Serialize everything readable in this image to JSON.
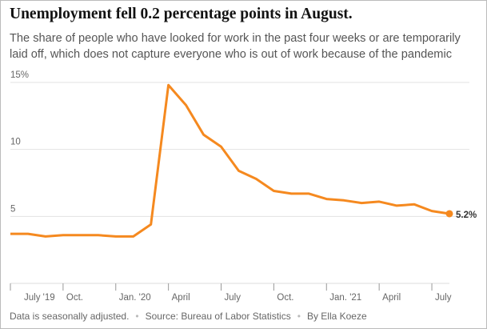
{
  "chart_data": {
    "type": "line",
    "title": "Unemployment fell 0.2 percentage points in August.",
    "subtitle": "The share of people who have looked for work in the past four weeks or are temporarily laid off, which does not capture everyone who is out of work because of the pandemic",
    "categories": [
      "July '19",
      null,
      null,
      "Oct.",
      null,
      null,
      "Jan. '20",
      null,
      null,
      "April",
      null,
      null,
      "July",
      null,
      null,
      "Oct.",
      null,
      null,
      "Jan. '21",
      null,
      null,
      "April",
      null,
      null,
      "July",
      null
    ],
    "values": [
      3.7,
      3.7,
      3.5,
      3.6,
      3.6,
      3.6,
      3.5,
      3.5,
      4.4,
      14.8,
      13.3,
      11.1,
      10.2,
      8.4,
      7.8,
      6.9,
      6.7,
      6.7,
      6.3,
      6.2,
      6.0,
      6.1,
      5.8,
      5.9,
      5.4,
      5.2
    ],
    "value_labels": [
      null,
      null,
      null,
      null,
      null,
      null,
      null,
      null,
      null,
      null,
      null,
      null,
      null,
      null,
      null,
      null,
      null,
      null,
      null,
      null,
      null,
      null,
      null,
      null,
      null,
      "5.2%"
    ],
    "color": "#f5891f",
    "ylim": [
      0,
      15
    ],
    "yticks": [
      5,
      10,
      {
        "value": 15,
        "label": "15%"
      }
    ],
    "grid": true,
    "notes": [
      "Data is seasonally adjusted.",
      "Source: Bureau of Labor Statistics",
      "By Ella Koeze"
    ]
  }
}
